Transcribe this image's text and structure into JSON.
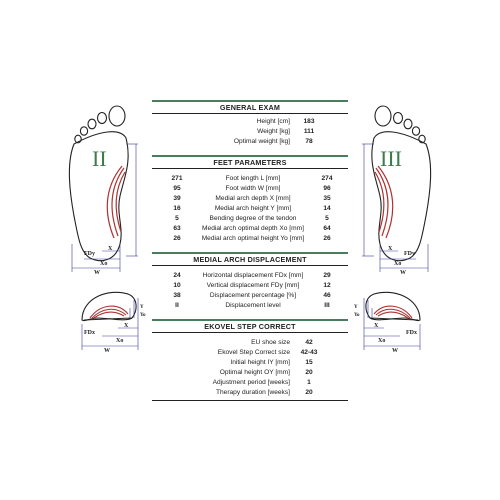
{
  "general": {
    "title": "GENERAL EXAM",
    "rows": [
      {
        "label": "Height [cm]",
        "value": "183"
      },
      {
        "label": "Weight [kg]",
        "value": "111"
      },
      {
        "label": "Optimal weight [kg]",
        "value": "78"
      }
    ]
  },
  "feet": {
    "title": "FEET PARAMETERS",
    "rows": [
      {
        "left": "271",
        "label": "Foot length L [mm]",
        "right": "274"
      },
      {
        "left": "95",
        "label": "Foot width W [mm]",
        "right": "96"
      },
      {
        "left": "39",
        "label": "Medial arch depth X [mm]",
        "right": "35"
      },
      {
        "left": "16",
        "label": "Medial arch height Y [mm]",
        "right": "14"
      },
      {
        "left": "5",
        "label": "Bending degree of the tendon",
        "right": "5"
      },
      {
        "left": "63",
        "label": "Medial arch optimal depth Xo [mm]",
        "right": "64"
      },
      {
        "left": "26",
        "label": "Medial arch optimal height Yo [mm]",
        "right": "26"
      }
    ]
  },
  "displacement": {
    "title": "MEDIAL ARCH DISPLACEMENT",
    "rows": [
      {
        "left": "24",
        "label": "Horizontal displacement FDx [mm]",
        "right": "29"
      },
      {
        "left": "10",
        "label": "Vertical displacement FDy [mm]",
        "right": "12"
      },
      {
        "left": "38",
        "label": "Displacement percentage [%]",
        "right": "46"
      },
      {
        "left": "II",
        "label": "Displacement level",
        "right": "III"
      }
    ]
  },
  "ekovel": {
    "title": "EKOVEL STEP CORRECT",
    "rows": [
      {
        "label": "EU shoe size",
        "value": "42"
      },
      {
        "label": "Ekovel Step Correct size",
        "value": "42-43"
      },
      {
        "label": "Initial height IY [mm]",
        "value": "15"
      },
      {
        "label": "Optimal height OY [mm]",
        "value": "20"
      },
      {
        "label": "Adjustment period [weeks]",
        "value": "1"
      },
      {
        "label": "Therapy duration [weeks]",
        "value": "20"
      }
    ]
  },
  "diagram": {
    "left_level": "II",
    "right_level": "III",
    "dim_labels": {
      "fdy": "FDy",
      "fdx": "FDx",
      "x": "X",
      "xo": "Xo",
      "w": "W",
      "y": "Y",
      "yo": "Yo",
      "l": "L"
    }
  },
  "colors": {
    "accent_green": "#4a7d5b",
    "arch_red": "#b03030",
    "level_green": "#3f7a4c",
    "dim_blue": "#3a3aa0"
  }
}
